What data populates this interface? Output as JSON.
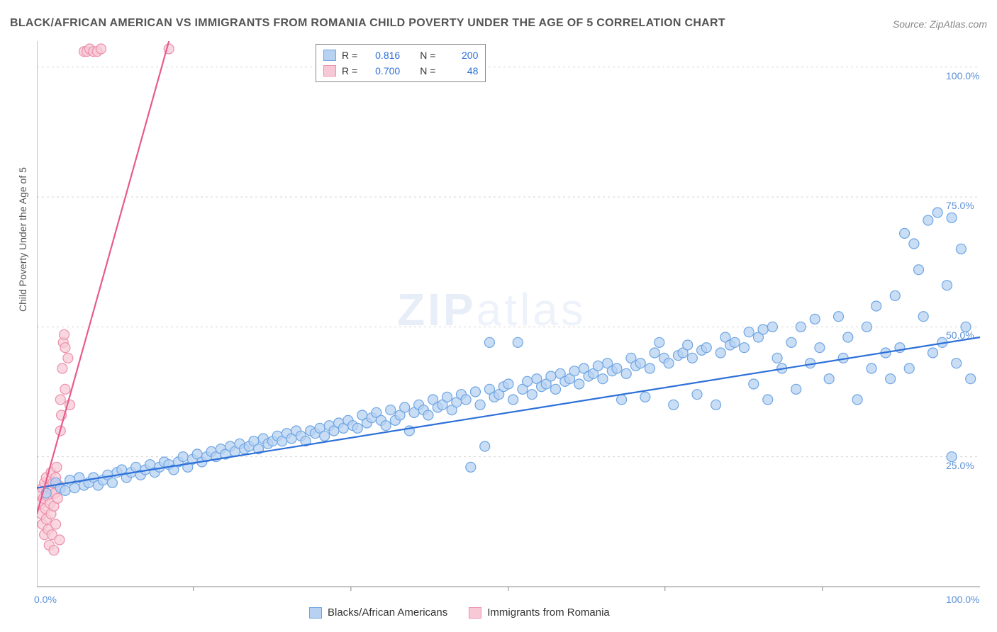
{
  "title": "BLACK/AFRICAN AMERICAN VS IMMIGRANTS FROM ROMANIA CHILD POVERTY UNDER THE AGE OF 5 CORRELATION CHART",
  "source": "Source: ZipAtlas.com",
  "y_axis_label": "Child Poverty Under the Age of 5",
  "watermark": {
    "bold": "ZIP",
    "thin": "atlas"
  },
  "chart": {
    "type": "scatter",
    "xlim": [
      0,
      100
    ],
    "ylim": [
      0,
      105
    ],
    "xtick_labels": [
      "0.0%",
      "100.0%"
    ],
    "ytick_labels": [
      "25.0%",
      "50.0%",
      "75.0%",
      "100.0%"
    ],
    "ytick_values": [
      25,
      50,
      75,
      100
    ],
    "grid_color": "#d5d5d5",
    "grid_dash": "3,4",
    "background_color": "#ffffff",
    "axis_color": "#888888",
    "marker_radius": 7,
    "marker_stroke_width": 1.2,
    "line_width": 2.2,
    "xtick_positions_minor": [
      16.6,
      33.3,
      50,
      66.6,
      83.3
    ]
  },
  "series": [
    {
      "name": "Blacks/African Americans",
      "color_fill": "#b7d2f1",
      "color_stroke": "#6ea5e3",
      "line_color": "#2d70d8",
      "stats": {
        "R": "0.816",
        "N": "200"
      },
      "trend": {
        "x1": 0,
        "y1": 19,
        "x2": 100,
        "y2": 48
      },
      "points": [
        [
          1,
          18
        ],
        [
          2,
          20
        ],
        [
          2.5,
          19
        ],
        [
          3,
          18.5
        ],
        [
          3.5,
          20.5
        ],
        [
          4,
          19
        ],
        [
          4.5,
          21
        ],
        [
          5,
          19.5
        ],
        [
          5.5,
          20
        ],
        [
          6,
          21
        ],
        [
          6.5,
          19.5
        ],
        [
          7,
          20.5
        ],
        [
          7.5,
          21.5
        ],
        [
          8,
          20
        ],
        [
          8.5,
          22
        ],
        [
          9,
          22.5
        ],
        [
          9.5,
          21
        ],
        [
          10,
          22
        ],
        [
          10.5,
          23
        ],
        [
          11,
          21.5
        ],
        [
          11.5,
          22.5
        ],
        [
          12,
          23.5
        ],
        [
          12.5,
          22
        ],
        [
          13,
          23
        ],
        [
          13.5,
          24
        ],
        [
          14,
          23.5
        ],
        [
          14.5,
          22.5
        ],
        [
          15,
          24
        ],
        [
          15.5,
          25
        ],
        [
          16,
          23
        ],
        [
          16.5,
          24.5
        ],
        [
          17,
          25.5
        ],
        [
          17.5,
          24
        ],
        [
          18,
          25
        ],
        [
          18.5,
          26
        ],
        [
          19,
          25
        ],
        [
          19.5,
          26.5
        ],
        [
          20,
          25.5
        ],
        [
          20.5,
          27
        ],
        [
          21,
          26
        ],
        [
          21.5,
          27.5
        ],
        [
          22,
          26.5
        ],
        [
          22.5,
          27
        ],
        [
          23,
          28
        ],
        [
          23.5,
          26.5
        ],
        [
          24,
          28.5
        ],
        [
          24.5,
          27.5
        ],
        [
          25,
          28
        ],
        [
          25.5,
          29
        ],
        [
          26,
          28
        ],
        [
          26.5,
          29.5
        ],
        [
          27,
          28.5
        ],
        [
          27.5,
          30
        ],
        [
          28,
          29
        ],
        [
          28.5,
          28
        ],
        [
          29,
          30
        ],
        [
          29.5,
          29.5
        ],
        [
          30,
          30.5
        ],
        [
          30.5,
          29
        ],
        [
          31,
          31
        ],
        [
          31.5,
          30
        ],
        [
          32,
          31.5
        ],
        [
          32.5,
          30.5
        ],
        [
          33,
          32
        ],
        [
          33.5,
          31
        ],
        [
          34,
          30.5
        ],
        [
          34.5,
          33
        ],
        [
          35,
          31.5
        ],
        [
          35.5,
          32.5
        ],
        [
          36,
          33.5
        ],
        [
          36.5,
          32
        ],
        [
          37,
          31
        ],
        [
          37.5,
          34
        ],
        [
          38,
          32
        ],
        [
          38.5,
          33
        ],
        [
          39,
          34.5
        ],
        [
          39.5,
          30
        ],
        [
          40,
          33.5
        ],
        [
          40.5,
          35
        ],
        [
          41,
          34
        ],
        [
          41.5,
          33
        ],
        [
          42,
          36
        ],
        [
          42.5,
          34.5
        ],
        [
          43,
          35
        ],
        [
          43.5,
          36.5
        ],
        [
          44,
          34
        ],
        [
          44.5,
          35.5
        ],
        [
          45,
          37
        ],
        [
          45.5,
          36
        ],
        [
          46,
          23
        ],
        [
          46.5,
          37.5
        ],
        [
          47,
          35
        ],
        [
          47.5,
          27
        ],
        [
          48,
          38
        ],
        [
          48,
          47
        ],
        [
          48.5,
          36.5
        ],
        [
          49,
          37
        ],
        [
          49.5,
          38.5
        ],
        [
          50,
          39
        ],
        [
          50.5,
          36
        ],
        [
          51,
          47
        ],
        [
          51.5,
          38
        ],
        [
          52,
          39.5
        ],
        [
          52.5,
          37
        ],
        [
          53,
          40
        ],
        [
          53.5,
          38.5
        ],
        [
          54,
          39
        ],
        [
          54.5,
          40.5
        ],
        [
          55,
          38
        ],
        [
          55.5,
          41
        ],
        [
          56,
          39.5
        ],
        [
          56.5,
          40
        ],
        [
          57,
          41.5
        ],
        [
          57.5,
          39
        ],
        [
          58,
          42
        ],
        [
          58.5,
          40.5
        ],
        [
          59,
          41
        ],
        [
          59.5,
          42.5
        ],
        [
          60,
          40
        ],
        [
          60.5,
          43
        ],
        [
          61,
          41.5
        ],
        [
          61.5,
          42
        ],
        [
          62,
          36
        ],
        [
          62.5,
          41
        ],
        [
          63,
          44
        ],
        [
          63.5,
          42.5
        ],
        [
          64,
          43
        ],
        [
          64.5,
          36.5
        ],
        [
          65,
          42
        ],
        [
          65.5,
          45
        ],
        [
          66,
          47
        ],
        [
          66.5,
          44
        ],
        [
          67,
          43
        ],
        [
          67.5,
          35
        ],
        [
          68,
          44.5
        ],
        [
          68.5,
          45
        ],
        [
          69,
          46.5
        ],
        [
          69.5,
          44
        ],
        [
          70,
          37
        ],
        [
          70.5,
          45.5
        ],
        [
          71,
          46
        ],
        [
          72,
          35
        ],
        [
          72.5,
          45
        ],
        [
          73,
          48
        ],
        [
          73.5,
          46.5
        ],
        [
          74,
          47
        ],
        [
          75,
          46
        ],
        [
          75.5,
          49
        ],
        [
          76,
          39
        ],
        [
          76.5,
          48
        ],
        [
          77,
          49.5
        ],
        [
          77.5,
          36
        ],
        [
          78,
          50
        ],
        [
          78.5,
          44
        ],
        [
          79,
          42
        ],
        [
          80,
          47
        ],
        [
          80.5,
          38
        ],
        [
          81,
          50
        ],
        [
          82,
          43
        ],
        [
          82.5,
          51.5
        ],
        [
          83,
          46
        ],
        [
          84,
          40
        ],
        [
          85,
          52
        ],
        [
          85.5,
          44
        ],
        [
          86,
          48
        ],
        [
          87,
          36
        ],
        [
          88,
          50
        ],
        [
          88.5,
          42
        ],
        [
          89,
          54
        ],
        [
          90,
          45
        ],
        [
          90.5,
          40
        ],
        [
          91,
          56
        ],
        [
          91.5,
          46
        ],
        [
          92,
          68
        ],
        [
          92.5,
          42
        ],
        [
          93,
          66
        ],
        [
          93.5,
          61
        ],
        [
          94,
          52
        ],
        [
          94.5,
          70.5
        ],
        [
          95,
          45
        ],
        [
          95.5,
          72
        ],
        [
          96,
          47
        ],
        [
          96.5,
          58
        ],
        [
          97,
          71
        ],
        [
          97,
          25
        ],
        [
          97.5,
          43
        ],
        [
          98,
          65
        ],
        [
          98.5,
          50
        ],
        [
          99,
          40
        ]
      ]
    },
    {
      "name": "Immigrants from Romania",
      "color_fill": "#f7c9d6",
      "color_stroke": "#ec8fab",
      "line_color": "#e85a8c",
      "stats": {
        "R": "0.700",
        "N": "48"
      },
      "trend": {
        "x1": 0,
        "y1": 14,
        "x2": 14,
        "y2": 105
      },
      "points": [
        [
          0.3,
          18
        ],
        [
          0.4,
          16
        ],
        [
          0.5,
          14
        ],
        [
          0.6,
          19
        ],
        [
          0.6,
          12
        ],
        [
          0.7,
          17
        ],
        [
          0.8,
          10
        ],
        [
          0.8,
          20
        ],
        [
          0.9,
          15
        ],
        [
          1.0,
          13
        ],
        [
          1.0,
          21
        ],
        [
          1.1,
          17.5
        ],
        [
          1.2,
          11
        ],
        [
          1.3,
          19
        ],
        [
          1.3,
          8
        ],
        [
          1.4,
          16
        ],
        [
          1.5,
          22
        ],
        [
          1.5,
          14
        ],
        [
          1.6,
          18.5
        ],
        [
          1.6,
          10
        ],
        [
          1.7,
          20
        ],
        [
          1.8,
          15.5
        ],
        [
          1.8,
          7
        ],
        [
          1.9,
          18
        ],
        [
          2.0,
          21
        ],
        [
          2.0,
          12
        ],
        [
          2.1,
          23
        ],
        [
          2.2,
          17
        ],
        [
          2.3,
          19.5
        ],
        [
          2.4,
          9
        ],
        [
          2.5,
          30
        ],
        [
          2.5,
          36
        ],
        [
          2.6,
          33
        ],
        [
          2.7,
          42
        ],
        [
          2.8,
          47
        ],
        [
          2.9,
          48.5
        ],
        [
          3.0,
          46
        ],
        [
          3.0,
          38
        ],
        [
          3.3,
          44
        ],
        [
          3.5,
          35
        ],
        [
          5,
          103
        ],
        [
          5.3,
          103
        ],
        [
          5.6,
          103.5
        ],
        [
          6,
          103
        ],
        [
          6.4,
          103
        ],
        [
          6.8,
          103.5
        ],
        [
          14,
          103.5
        ]
      ]
    }
  ],
  "legend_top": {
    "R_label": "R =",
    "N_label": "N ="
  },
  "legend_bottom": {
    "series1": "Blacks/African Americans",
    "series2": "Immigrants from Romania"
  }
}
